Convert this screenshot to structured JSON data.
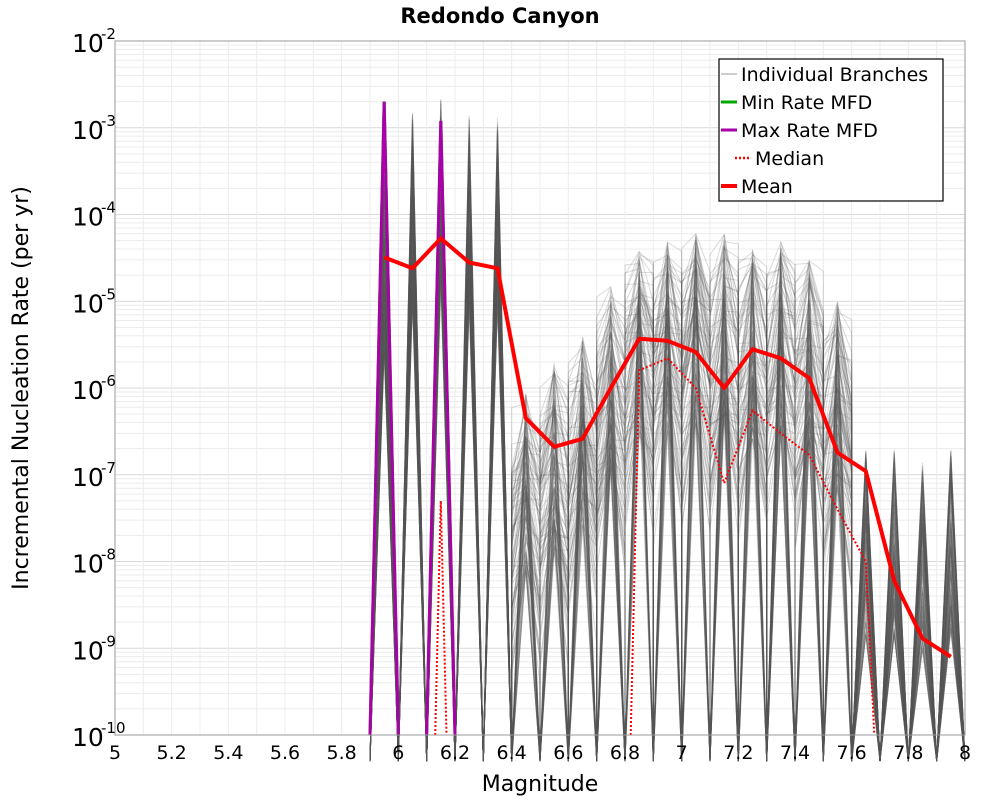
{
  "chart_data": {
    "type": "line",
    "title": "Redondo Canyon",
    "xlabel": "Magnitude",
    "ylabel": "Incremental Nucleation Rate (per yr)",
    "xlim": [
      5,
      8
    ],
    "ylim": [
      1e-10,
      0.01
    ],
    "y_scale": "log",
    "grid": true,
    "legend_position": "top-right",
    "x_ticks": [
      "5",
      "5.2",
      "5.4",
      "5.6",
      "5.8",
      "6",
      "6.2",
      "6.4",
      "6.6",
      "6.8",
      "7",
      "7.2",
      "7.4",
      "7.6",
      "7.8",
      "8"
    ],
    "y_tick_exponents": [
      "-10",
      "-9",
      "-8",
      "-7",
      "-6",
      "-5",
      "-4",
      "-3",
      "-2"
    ],
    "series": [
      {
        "name": "Individual Branches",
        "color": "#555555",
        "style": "thin-gray-bundle",
        "bin_centers": [
          5.95,
          6.05,
          6.15,
          6.25,
          6.35,
          6.45,
          6.55,
          6.65,
          6.75,
          6.85,
          6.95,
          7.05,
          7.15,
          7.25,
          7.35,
          7.45,
          7.55,
          7.65,
          7.75,
          7.85,
          7.95
        ],
        "peak_values": [
          0.0004,
          0.0015,
          0.0024,
          0.0015,
          0.0013,
          1e-06,
          2e-06,
          4e-06,
          1.5e-05,
          4e-05,
          5e-05,
          6e-05,
          6e-05,
          4e-05,
          5e-05,
          3e-05,
          1e-05,
          2e-07,
          2e-07,
          1.5e-07,
          2e-07
        ]
      },
      {
        "name": "Min Rate MFD",
        "color": "#00aa00",
        "style": "solid",
        "x": [
          5.95,
          6.15
        ],
        "y": [
          0.002,
          0.0012
        ]
      },
      {
        "name": "Max Rate MFD",
        "color": "#aa00aa",
        "style": "solid",
        "x": [
          5.95,
          6.15
        ],
        "y": [
          0.002,
          0.0012
        ]
      },
      {
        "name": "Median",
        "color": "#ff0000",
        "style": "dotted",
        "x": [
          6.15,
          6.85,
          6.95,
          7.05,
          7.15,
          7.25,
          7.35,
          7.45,
          7.55,
          7.65
        ],
        "y": [
          5e-08,
          1.6e-06,
          2.2e-06,
          1e-06,
          8e-08,
          5.5e-07,
          3e-07,
          1.7e-07,
          4e-08,
          1e-08
        ]
      },
      {
        "name": "Mean",
        "color": "#ff0000",
        "style": "solid-thick",
        "x": [
          5.95,
          6.05,
          6.15,
          6.25,
          6.35,
          6.45,
          6.55,
          6.65,
          6.75,
          6.85,
          6.95,
          7.05,
          7.15,
          7.25,
          7.35,
          7.45,
          7.55,
          7.65,
          7.75,
          7.85,
          7.95
        ],
        "y": [
          3.2e-05,
          2.4e-05,
          5.3e-05,
          2.8e-05,
          2.4e-05,
          4.5e-07,
          2.1e-07,
          2.6e-07,
          1e-06,
          3.7e-06,
          3.5e-06,
          2.6e-06,
          1e-06,
          2.8e-06,
          2.2e-06,
          1.3e-06,
          1.8e-07,
          1.1e-07,
          6e-09,
          1.3e-09,
          8e-10
        ]
      }
    ]
  }
}
